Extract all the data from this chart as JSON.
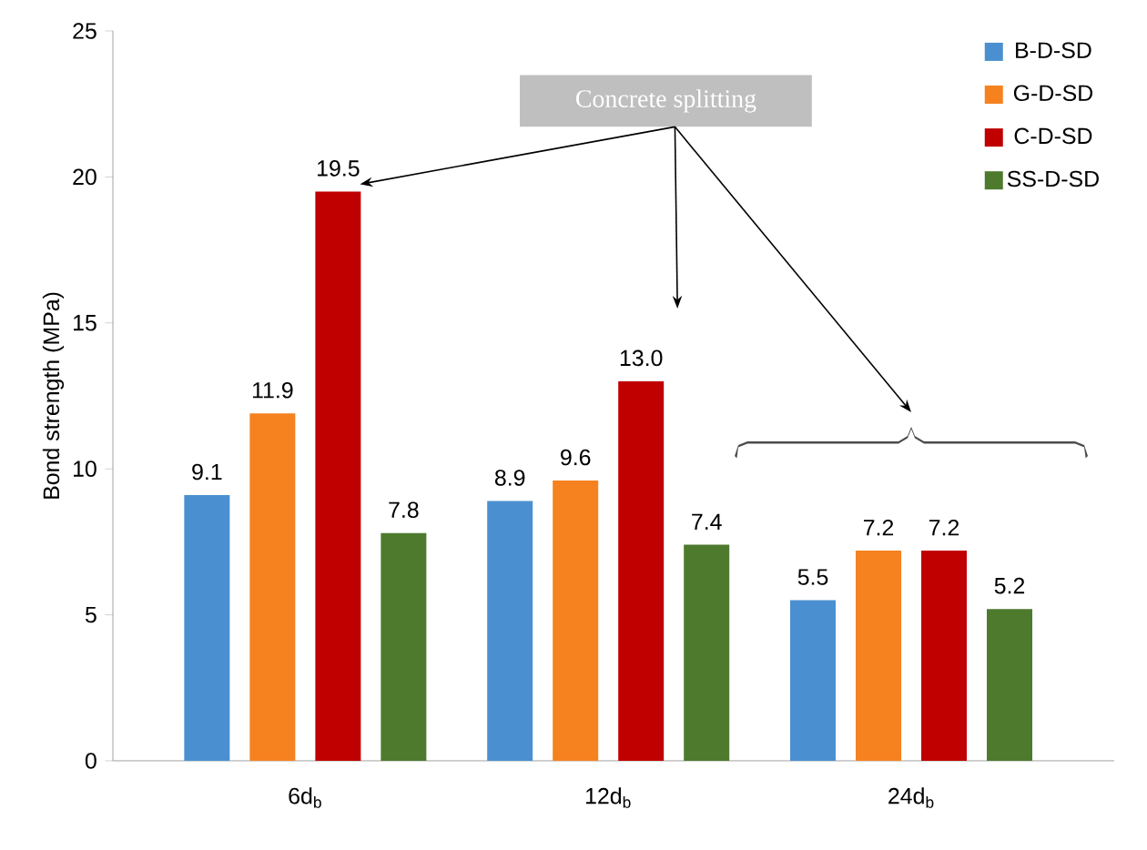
{
  "chart_data": {
    "type": "bar",
    "ylabel": "Bond strength (MPa)",
    "categories": [
      "6d$_{b}$",
      "12d$_{b}$",
      "24d$_{b}$"
    ],
    "ylim": [
      0,
      25
    ],
    "yticks": [
      0,
      5,
      10,
      15,
      20,
      25
    ],
    "legend": "top right",
    "annotations": [
      "Concrete splitting"
    ],
    "series": [
      {
        "name": "B-D-SD",
        "color": "#4a90d0",
        "values": [
          9.1,
          8.9,
          5.5
        ],
        "value_labels": [
          "9.1",
          "8.9",
          "5.5"
        ]
      },
      {
        "name": "G-D-SD",
        "color": "#f5821f",
        "values": [
          11.9,
          9.6,
          7.2
        ],
        "value_labels": [
          "11.9",
          "9.6",
          "7.2"
        ]
      },
      {
        "name": "C-D-SD",
        "color": "#c00000",
        "values": [
          19.5,
          13.0,
          7.2
        ],
        "value_labels": [
          "19.5",
          "13.0",
          "7.2"
        ]
      },
      {
        "name": "SS-D-SD",
        "color": "#4e7a2e",
        "values": [
          7.8,
          7.4,
          5.2
        ],
        "value_labels": [
          "7.8",
          "7.4",
          "5.2"
        ]
      }
    ]
  }
}
